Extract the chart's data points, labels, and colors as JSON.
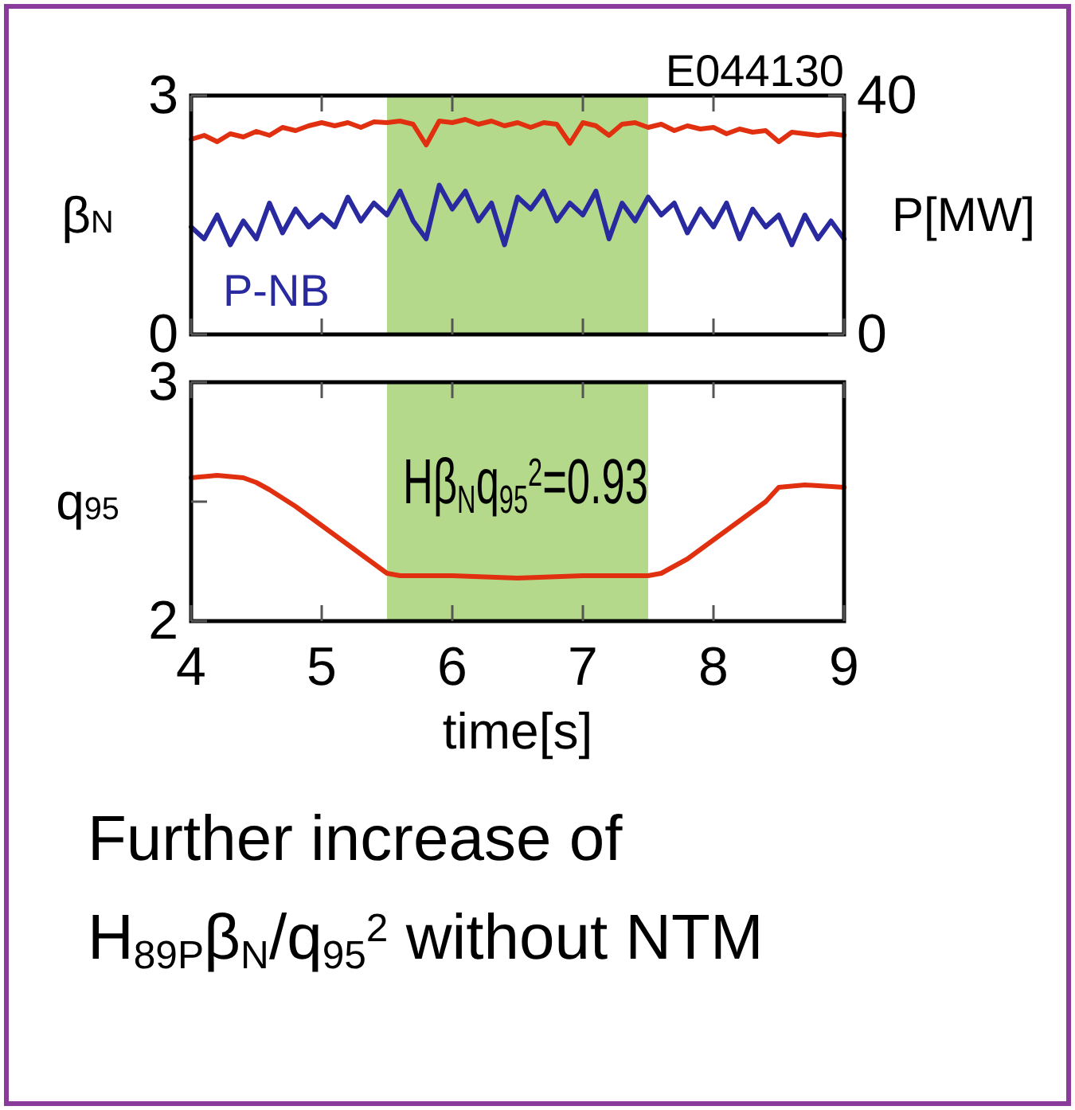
{
  "chart_data": [
    {
      "type": "line",
      "xlim": [
        4,
        9
      ],
      "xticks": [
        4,
        5,
        6,
        7,
        8,
        9
      ],
      "ylim": [
        0,
        3
      ],
      "yticks": [
        0,
        3
      ],
      "y2lim": [
        0,
        40
      ],
      "y2ticks": [
        0,
        40
      ],
      "ylabel": "β$_{N}$",
      "y2label": "P[MW]",
      "tick_labels": "y",
      "annotations": [
        "E044130"
      ],
      "bands": [
        {
          "axis": "x",
          "from": 5.5,
          "to": 7.5,
          "color": "#b5d98a"
        }
      ],
      "x": [
        4.0,
        4.1,
        4.2,
        4.3,
        4.4,
        4.5,
        4.6,
        4.7,
        4.8,
        4.9,
        5.0,
        5.1,
        5.2,
        5.3,
        5.4,
        5.5,
        5.6,
        5.7,
        5.8,
        5.9,
        6.0,
        6.1,
        6.2,
        6.3,
        6.4,
        6.5,
        6.6,
        6.7,
        6.8,
        6.9,
        7.0,
        7.1,
        7.2,
        7.3,
        7.4,
        7.5,
        7.6,
        7.7,
        7.8,
        7.9,
        8.0,
        8.1,
        8.2,
        8.3,
        8.4,
        8.5,
        8.6,
        8.7,
        8.8,
        8.9,
        9.0
      ],
      "series": [
        {
          "color": "#e03010",
          "values": [
            2.45,
            2.5,
            2.42,
            2.52,
            2.48,
            2.55,
            2.5,
            2.6,
            2.56,
            2.62,
            2.66,
            2.62,
            2.66,
            2.6,
            2.67,
            2.66,
            2.68,
            2.64,
            2.38,
            2.68,
            2.66,
            2.7,
            2.64,
            2.68,
            2.62,
            2.66,
            2.6,
            2.66,
            2.64,
            2.4,
            2.66,
            2.62,
            2.5,
            2.64,
            2.66,
            2.6,
            2.64,
            2.56,
            2.62,
            2.58,
            2.6,
            2.52,
            2.58,
            2.54,
            2.56,
            2.42,
            2.54,
            2.52,
            2.5,
            2.52,
            2.5
          ]
        },
        {
          "name": "P-NB",
          "color": "#2a2aa0",
          "axis": "y2",
          "values": [
            18,
            16,
            20,
            15,
            19,
            16,
            22,
            17,
            21,
            18,
            20,
            18,
            23,
            19,
            22,
            20,
            24,
            19,
            16,
            25,
            21,
            24,
            19,
            22,
            15,
            23,
            21,
            24,
            19,
            22,
            20,
            24,
            16,
            22,
            19,
            23,
            20,
            22,
            17,
            21,
            18,
            22,
            16,
            21,
            18,
            20,
            15,
            20,
            16,
            19,
            16
          ]
        }
      ]
    },
    {
      "type": "line",
      "title": "Further increase of H$_{89P}$β$_{N}$/q$_{95}$$^{2}$ without NTM",
      "xlabel": "time[s]",
      "ylabel": "q$_{95}$",
      "xlim": [
        4,
        9
      ],
      "xticks": [
        4,
        5,
        6,
        7,
        8,
        9
      ],
      "ylim": [
        2,
        3
      ],
      "yticks": [
        2,
        {
          "value": 2.5,
          "label": null
        },
        3
      ],
      "bands": [
        {
          "axis": "x",
          "from": 5.5,
          "to": 7.5,
          "color": "#b5d98a",
          "label": "Hβ$_{N}$q$_{95}$$^{2}$=0.93"
        }
      ],
      "x": [
        4.0,
        4.2,
        4.4,
        4.5,
        4.6,
        4.8,
        5.0,
        5.2,
        5.4,
        5.5,
        5.6,
        6.0,
        6.5,
        7.0,
        7.5,
        7.6,
        7.8,
        8.0,
        8.2,
        8.4,
        8.5,
        8.7,
        9.0
      ],
      "series": [
        {
          "color": "#e03010",
          "values": [
            2.6,
            2.61,
            2.6,
            2.58,
            2.55,
            2.48,
            2.4,
            2.32,
            2.24,
            2.2,
            2.19,
            2.19,
            2.18,
            2.19,
            2.19,
            2.2,
            2.26,
            2.34,
            2.42,
            2.5,
            2.56,
            2.57,
            2.56
          ]
        }
      ]
    }
  ]
}
